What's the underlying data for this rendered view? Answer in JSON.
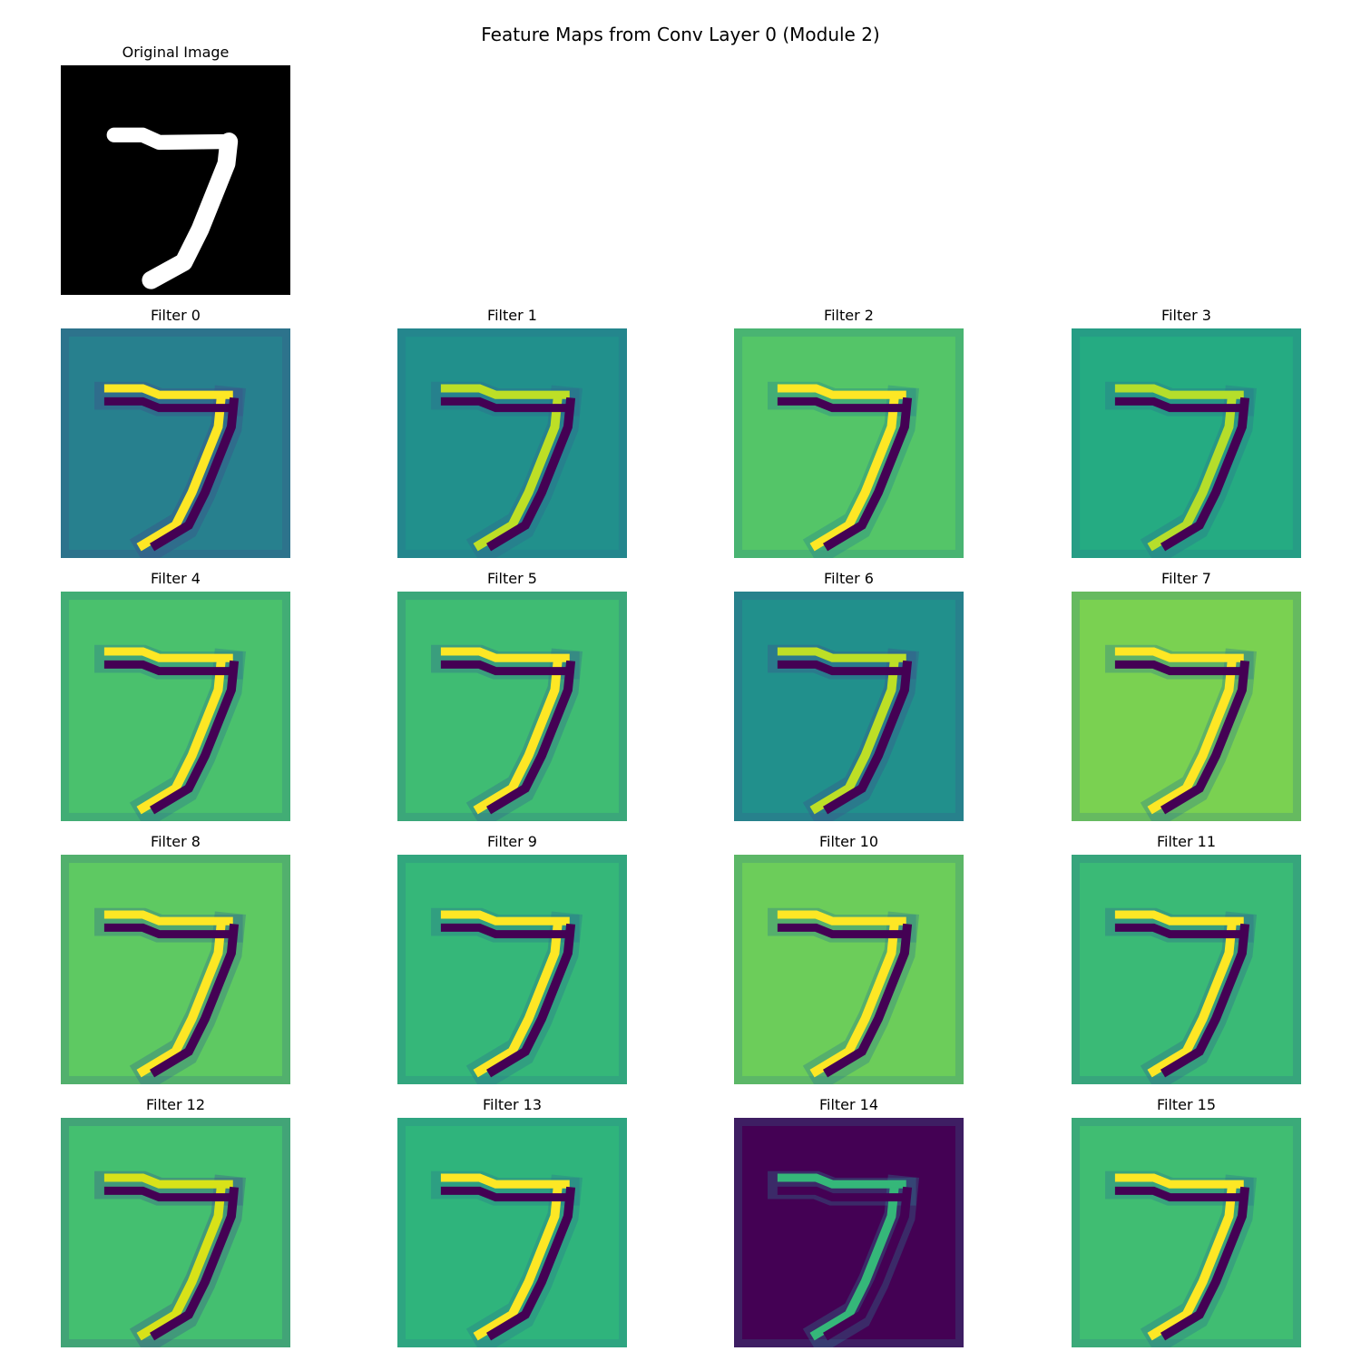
{
  "figure": {
    "title": "Feature Maps from Conv Layer 0 (Module 2)"
  },
  "original": {
    "title": "Original Image",
    "colormap": "gray"
  },
  "colormap": "viridis",
  "filters": [
    {
      "title": "Filter 0",
      "bg": "#27808e",
      "line": "#fde725",
      "edge": "#3e4a89",
      "dark": "#440154"
    },
    {
      "title": "Filter 1",
      "bg": "#21908c",
      "line": "#bddf26",
      "edge": "#31688e",
      "dark": "#440154"
    },
    {
      "title": "Filter 2",
      "bg": "#54c568",
      "line": "#fde725",
      "edge": "#26828e",
      "dark": "#440154"
    },
    {
      "title": "Filter 3",
      "bg": "#25ab82",
      "line": "#b5de2b",
      "edge": "#2c728e",
      "dark": "#440154"
    },
    {
      "title": "Filter 4",
      "bg": "#4ac16d",
      "line": "#fde725",
      "edge": "#2c728e",
      "dark": "#440154"
    },
    {
      "title": "Filter 5",
      "bg": "#3fbc73",
      "line": "#fde725",
      "edge": "#31688e",
      "dark": "#440154"
    },
    {
      "title": "Filter 6",
      "bg": "#21908c",
      "line": "#bddf26",
      "edge": "#3b528b",
      "dark": "#440154"
    },
    {
      "title": "Filter 7",
      "bg": "#7ad151",
      "line": "#fde725",
      "edge": "#2a788e",
      "dark": "#440154"
    },
    {
      "title": "Filter 8",
      "bg": "#5ec962",
      "line": "#fde725",
      "edge": "#31688e",
      "dark": "#440154"
    },
    {
      "title": "Filter 9",
      "bg": "#35b779",
      "line": "#fde725",
      "edge": "#2c728e",
      "dark": "#440154"
    },
    {
      "title": "Filter 10",
      "bg": "#6ccd5a",
      "line": "#fde725",
      "edge": "#2a788e",
      "dark": "#440154"
    },
    {
      "title": "Filter 11",
      "bg": "#3aba76",
      "line": "#fde725",
      "edge": "#31688e",
      "dark": "#440154"
    },
    {
      "title": "Filter 12",
      "bg": "#44bf70",
      "line": "#d8e219",
      "edge": "#3b528b",
      "dark": "#440154"
    },
    {
      "title": "Filter 13",
      "bg": "#2fb47c",
      "line": "#fde725",
      "edge": "#2a788e",
      "dark": "#440154"
    },
    {
      "title": "Filter 14",
      "bg": "#440154",
      "line": "#35b779",
      "edge": "#2a788e",
      "dark": "#440154"
    },
    {
      "title": "Filter 15",
      "bg": "#40bd72",
      "line": "#fde725",
      "edge": "#2c728e",
      "dark": "#440154"
    }
  ]
}
